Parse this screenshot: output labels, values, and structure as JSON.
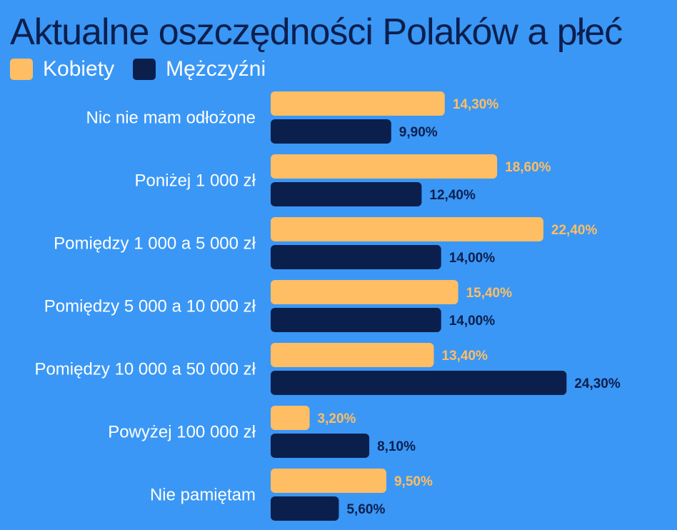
{
  "chart_data": {
    "type": "bar",
    "orientation": "horizontal",
    "title": "Aktualne oszczędności Polaków a płeć",
    "categories": [
      "Nic nie mam odłożone",
      "Poniżej 1 000 zł",
      "Pomiędzy 1 000 a 5 000 zł",
      "Pomiędzy 5 000 a 10 000 zł",
      "Pomiędzy 10 000 a 50 000 zł",
      "Powyżej 100 000 zł",
      "Nie pamiętam"
    ],
    "series": [
      {
        "name": "Kobiety",
        "color": "#ffbe63",
        "values": [
          14.3,
          18.6,
          22.4,
          15.4,
          13.4,
          3.2,
          9.5
        ],
        "labels": [
          "14,30%",
          "18,60%",
          "22,40%",
          "15,40%",
          "13,40%",
          "3,20%",
          "9,50%"
        ]
      },
      {
        "name": "Mężczyźni",
        "color": "#0b1f4d",
        "values": [
          9.9,
          12.4,
          14.0,
          14.0,
          24.3,
          8.1,
          5.6
        ],
        "labels": [
          "9,90%",
          "12,40%",
          "14,00%",
          "14,00%",
          "24,30%",
          "8,10%",
          "5,60%"
        ]
      }
    ],
    "xlabel": "",
    "ylabel": "",
    "xlim": [
      0,
      24.3
    ],
    "grid": false,
    "legend": "top-left"
  },
  "colors": {
    "background": "#3a97f5",
    "title": "#0b1f4d",
    "category_text": "#ffffff"
  }
}
